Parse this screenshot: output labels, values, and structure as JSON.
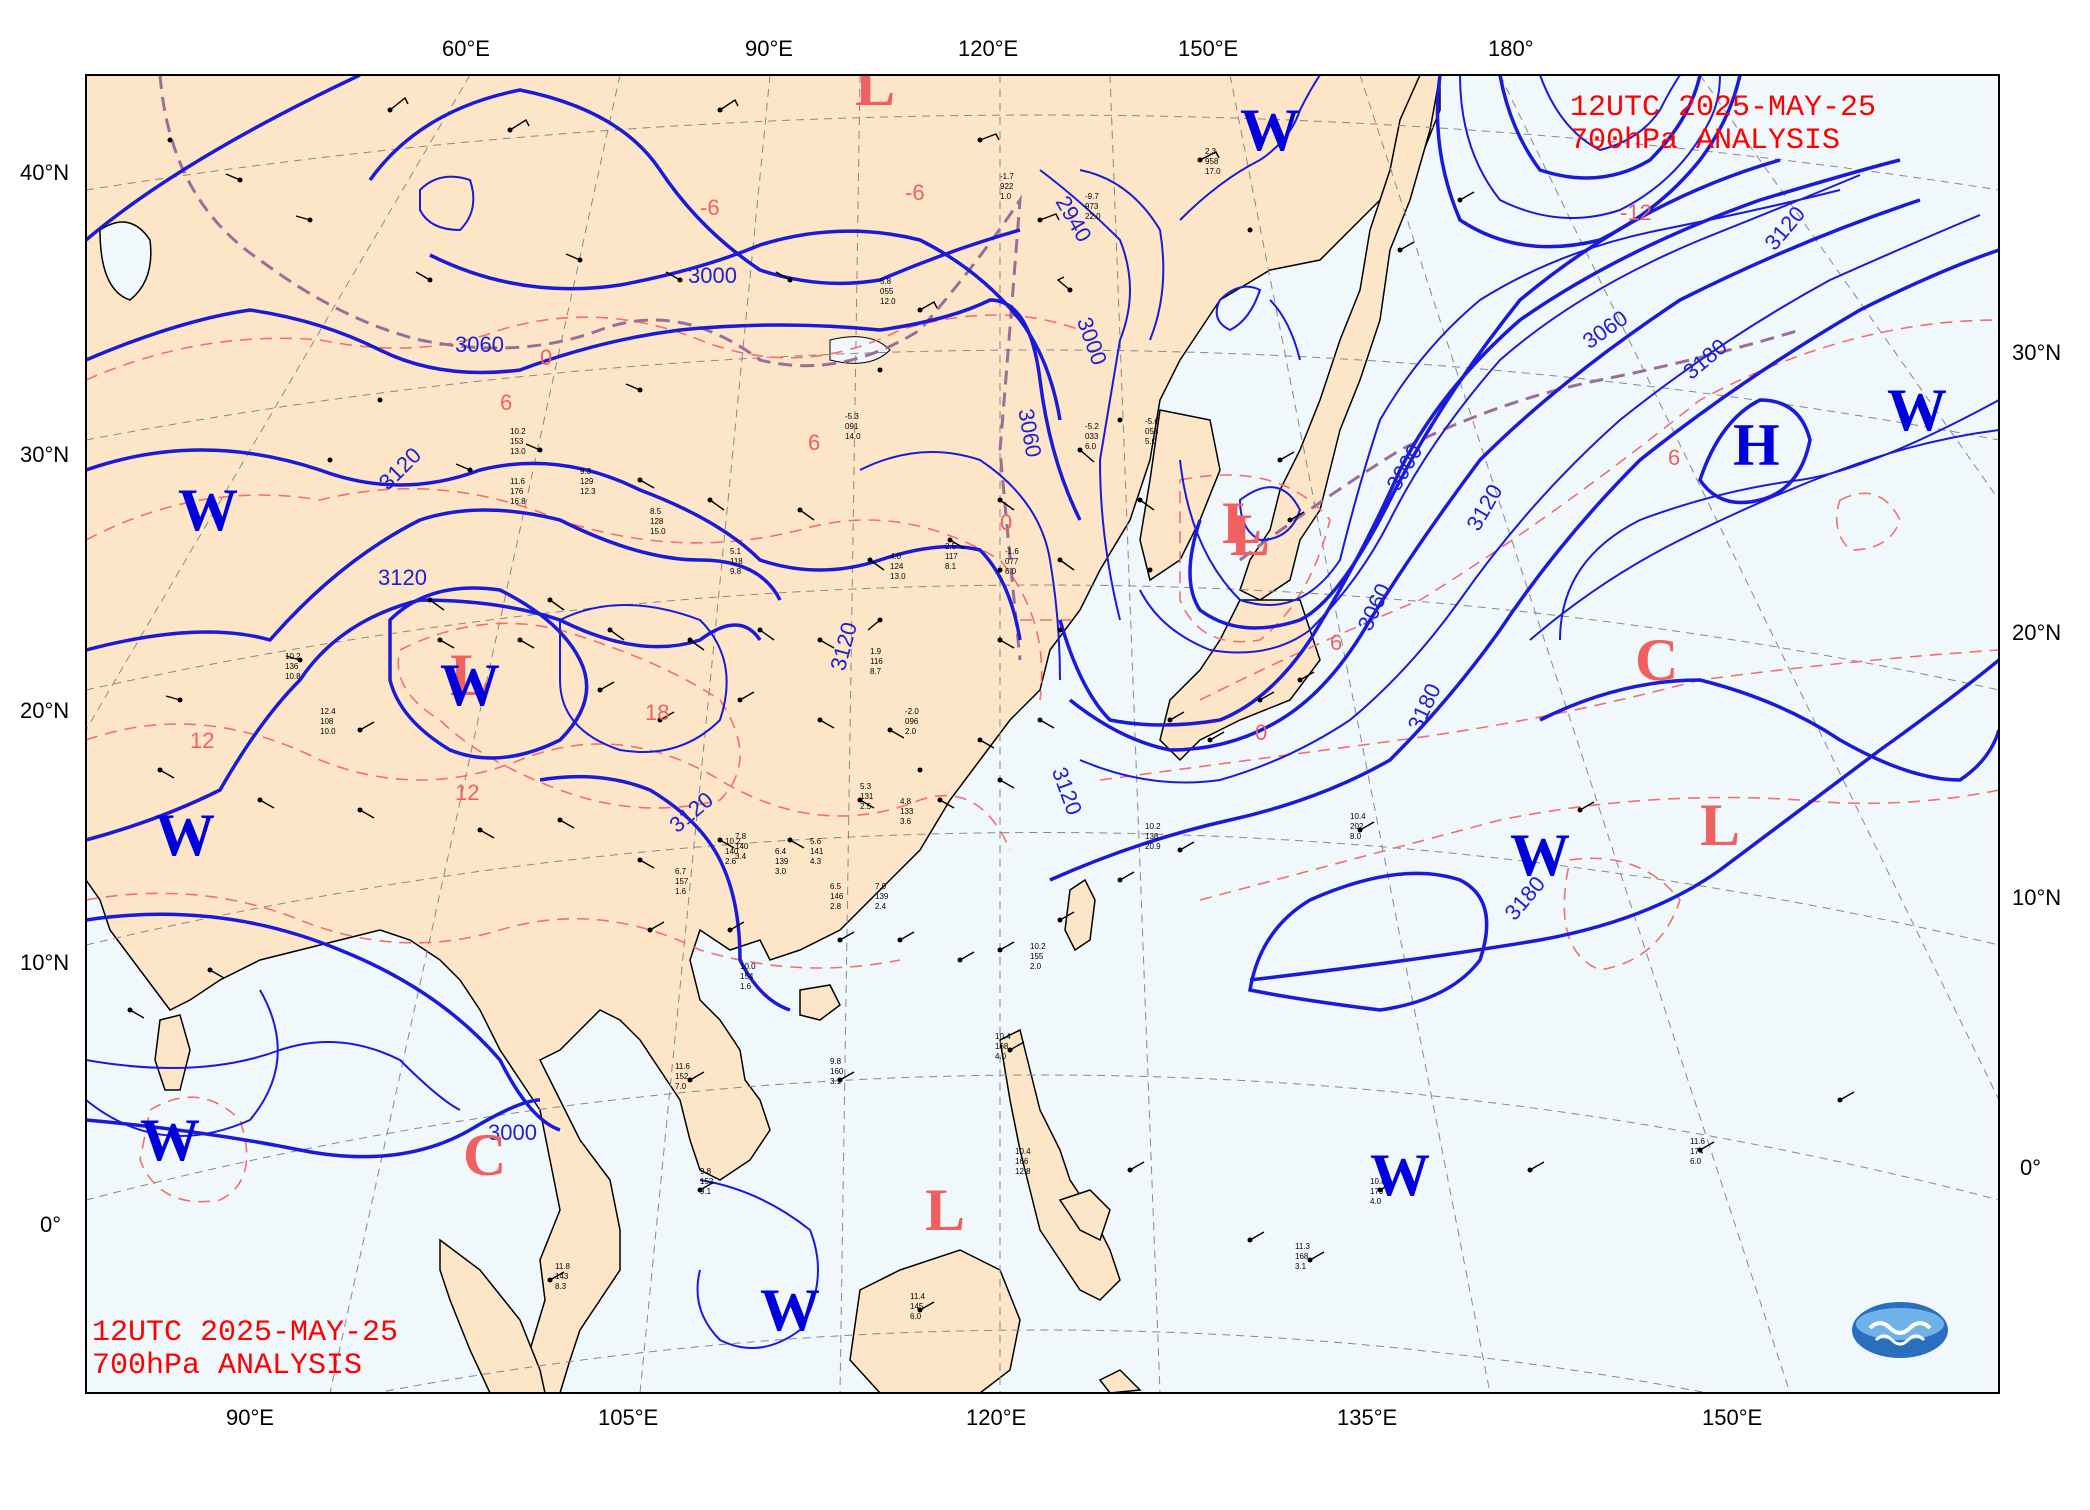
{
  "titles": {
    "top_right_line1": "12UTC  2025-MAY-25",
    "top_right_line2": "700hPa ANALYSIS",
    "bottom_left_line1": "12UTC  2025-MAY-25",
    "bottom_left_line2": "700hPa ANALYSIS"
  },
  "axes": {
    "top": [
      "60°E",
      "90°E",
      "120°E",
      "150°E",
      "180°"
    ],
    "bottom": [
      "90°E",
      "105°E",
      "120°E",
      "135°E",
      "150°E"
    ],
    "left": [
      "40°N",
      "30°N",
      "20°N",
      "10°N",
      "0°"
    ],
    "right": [
      "30°N",
      "20°N",
      "10°N",
      "0°"
    ]
  },
  "systems": [
    {
      "label": "L",
      "color": "#f06060"
    },
    {
      "label": "W",
      "color": "#0000dd"
    },
    {
      "label": "W",
      "color": "#0000dd"
    },
    {
      "label": "L",
      "color": "#f06060"
    },
    {
      "label": "W",
      "color": "#0000dd"
    },
    {
      "label": "W",
      "color": "#0000dd"
    },
    {
      "label": "L",
      "color": "#f06060"
    },
    {
      "label": "H",
      "color": "#0000dd"
    },
    {
      "label": "W",
      "color": "#0000dd"
    },
    {
      "label": "C",
      "color": "#f06060"
    },
    {
      "label": "L",
      "color": "#f06060"
    },
    {
      "label": "W",
      "color": "#0000dd"
    },
    {
      "label": "W",
      "color": "#0000dd"
    },
    {
      "label": "C",
      "color": "#f06060"
    },
    {
      "label": "L",
      "color": "#f06060"
    },
    {
      "label": "W",
      "color": "#0000dd"
    },
    {
      "label": "W",
      "color": "#0000dd"
    },
    {
      "label": "L",
      "color": "#f06060"
    }
  ],
  "contour_labels": [
    "3000",
    "3060",
    "3120",
    "3120",
    "3120",
    "3120",
    "3060",
    "3000",
    "2940",
    "3120",
    "3000",
    "3060",
    "3180",
    "3060",
    "3120",
    "3180",
    "3180",
    "3120",
    "3000"
  ],
  "temperature_labels": [
    "-6",
    "0",
    "6",
    "12",
    "18",
    "6",
    "0",
    "-6",
    "-12",
    "6",
    "0",
    "12",
    "6"
  ],
  "stations": [
    {
      "t": "2.3",
      "h": "958",
      "d": "17.0"
    },
    {
      "t": "-9.7",
      "h": "973",
      "d": "22.0"
    },
    {
      "t": "-1.7",
      "h": "922",
      "d": "1.0"
    },
    {
      "t": "-5.2",
      "h": "033",
      "d": "6.0"
    },
    {
      "t": "10.2",
      "h": "153",
      "d": "13.0"
    },
    {
      "t": "11.6",
      "h": "176",
      "d": "16.8"
    },
    {
      "t": "9.3",
      "h": "129",
      "d": "12.3"
    },
    {
      "t": "8.5",
      "h": "128",
      "d": "15.0"
    },
    {
      "t": "5.1",
      "h": "118",
      "d": "9.8"
    },
    {
      "t": "4.0",
      "h": "124",
      "d": "13.0"
    },
    {
      "t": "2.5",
      "h": "117",
      "d": "8.1"
    },
    {
      "t": "-1.6",
      "h": "077",
      "d": "6.0"
    },
    {
      "t": "10.2",
      "h": "136",
      "d": "10.8"
    },
    {
      "t": "12.4",
      "h": "108",
      "d": "10.0"
    },
    {
      "t": "6.7",
      "h": "157",
      "d": "1.6"
    },
    {
      "t": "10.2",
      "h": "140",
      "d": "2.6"
    },
    {
      "t": "5.6",
      "h": "141",
      "d": "4.3"
    },
    {
      "t": "6.5",
      "h": "146",
      "d": "2.8"
    },
    {
      "t": "7.0",
      "h": "139",
      "d": "2.4"
    },
    {
      "t": "4.8",
      "h": "133",
      "d": "3.6"
    },
    {
      "t": "10.0",
      "h": "154",
      "d": "1.6"
    },
    {
      "t": "11.6",
      "h": "152",
      "d": "7.0"
    },
    {
      "t": "9.8",
      "h": "152",
      "d": "9.1"
    },
    {
      "t": "10.4",
      "h": "168",
      "d": "4.0"
    },
    {
      "t": "10.4",
      "h": "166",
      "d": "12.8"
    },
    {
      "t": "10.2",
      "h": "155",
      "d": "2.0"
    },
    {
      "t": "10.4",
      "h": "202",
      "d": "8.0"
    },
    {
      "t": "11.6",
      "h": "174",
      "d": "6.0"
    },
    {
      "t": "10.8",
      "h": "179",
      "d": "4.0"
    },
    {
      "t": "11.3",
      "h": "168",
      "d": "3.1"
    },
    {
      "t": "11.4",
      "h": "145",
      "d": "6.0"
    },
    {
      "t": "9.8",
      "h": "160",
      "d": "3.1"
    },
    {
      "t": "11.8",
      "h": "143",
      "d": "8.3"
    },
    {
      "t": "10.2",
      "h": "138",
      "d": "20.9"
    },
    {
      "t": "7.8",
      "h": "140",
      "d": "3.4"
    },
    {
      "t": "6.4",
      "h": "139",
      "d": "3.0"
    },
    {
      "t": "5.3",
      "h": "131",
      "d": "2.5"
    },
    {
      "t": "1.9",
      "h": "116",
      "d": "8.7"
    },
    {
      "t": "-2.0",
      "h": "096",
      "d": "2.0"
    },
    {
      "t": "-5.3",
      "h": "091",
      "d": "14.0"
    },
    {
      "t": "5.8",
      "h": "055",
      "d": "12.0"
    },
    {
      "t": "-5.6",
      "h": "058",
      "d": "5.0"
    }
  ]
}
